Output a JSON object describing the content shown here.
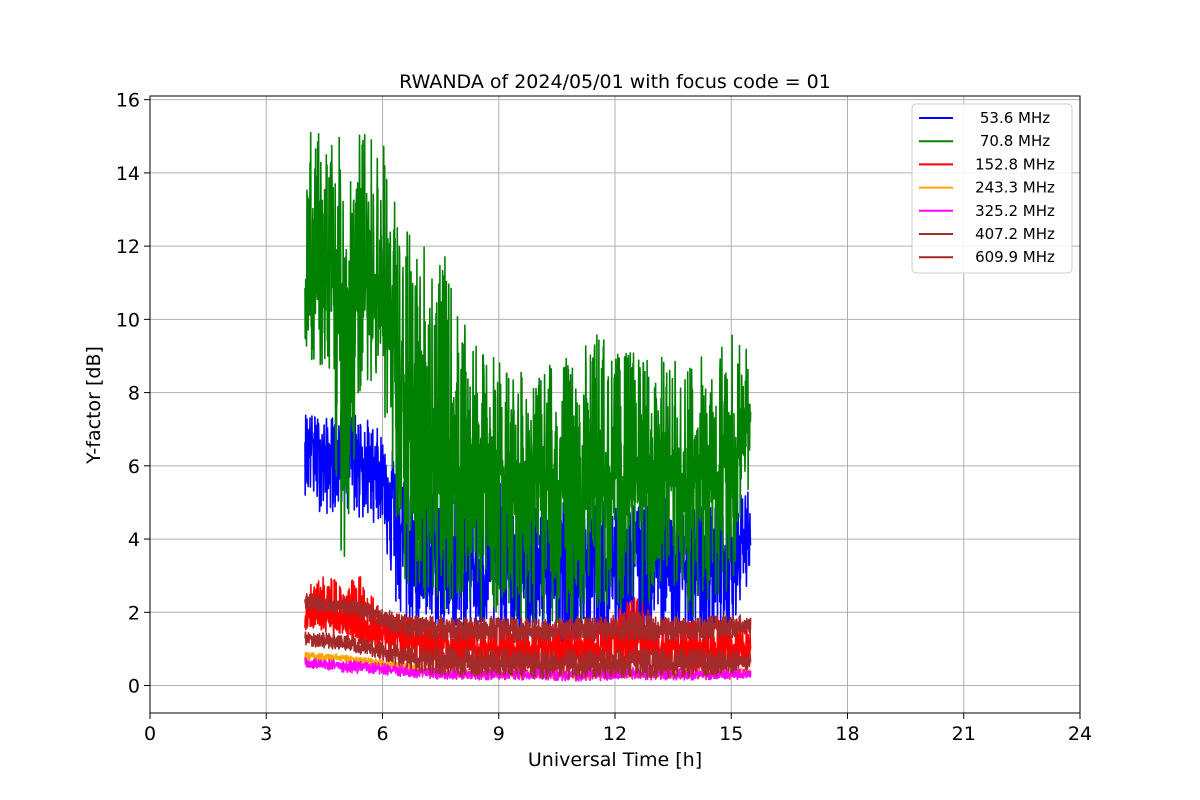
{
  "chart_data": {
    "type": "line",
    "title": "RWANDA of 2024/05/01 with focus code = 01",
    "xlabel": "Universal Time [h]",
    "ylabel": "Y-factor [dB]",
    "xlim": [
      0,
      24
    ],
    "ylim": [
      -0.75,
      16.1
    ],
    "xticks": [
      0,
      3,
      6,
      9,
      12,
      15,
      18,
      21,
      24
    ],
    "yticks": [
      0,
      2,
      4,
      6,
      8,
      10,
      12,
      14,
      16
    ],
    "grid": true,
    "legend_position": "top-right",
    "x_range_of_data": [
      4.0,
      15.5
    ],
    "series": [
      {
        "name": "53.6 MHz",
        "color": "#0000ff",
        "x": [
          4.0,
          4.5,
          5.0,
          5.5,
          6.0,
          6.25,
          6.5,
          7.0,
          7.5,
          8.0,
          8.5,
          9.0,
          9.5,
          10.0,
          10.5,
          11.0,
          11.5,
          12.0,
          12.5,
          13.0,
          13.5,
          14.0,
          14.5,
          15.0,
          15.5
        ],
        "values": [
          6.9,
          6.2,
          6.4,
          6.2,
          5.9,
          5.4,
          4.2,
          3.3,
          3.2,
          3.5,
          3.2,
          3.4,
          3.2,
          3.0,
          3.0,
          3.2,
          3.4,
          3.2,
          3.4,
          3.5,
          3.3,
          3.2,
          3.4,
          3.6,
          4.3
        ],
        "min_envelope": [
          5.2,
          4.6,
          4.9,
          4.4,
          4.5,
          2.4,
          1.4,
          1.6,
          1.4,
          1.4,
          1.2,
          1.2,
          1.2,
          1.2,
          1.2,
          1.0,
          1.2,
          1.2,
          1.2,
          1.4,
          1.2,
          1.2,
          1.2,
          1.6,
          3.0
        ],
        "max_envelope": [
          7.5,
          7.3,
          7.5,
          7.4,
          6.9,
          6.8,
          6.2,
          5.8,
          5.8,
          6.1,
          5.8,
          5.6,
          6.0,
          5.2,
          5.2,
          5.2,
          5.0,
          5.3,
          5.0,
          5.3,
          5.0,
          4.9,
          5.0,
          5.3,
          5.4
        ]
      },
      {
        "name": "70.8 MHz",
        "color": "#008000",
        "x": [
          4.0,
          4.5,
          5.0,
          5.5,
          6.0,
          6.25,
          6.5,
          7.0,
          7.5,
          8.0,
          8.5,
          9.0,
          9.5,
          10.0,
          10.5,
          11.0,
          11.5,
          12.0,
          12.5,
          13.0,
          13.5,
          14.0,
          14.5,
          15.0,
          15.5
        ],
        "values": [
          10.5,
          10.8,
          10.2,
          11.2,
          11.0,
          9.5,
          7.0,
          6.2,
          6.0,
          6.0,
          6.0,
          5.8,
          5.8,
          5.6,
          5.2,
          5.4,
          5.6,
          5.5,
          5.6,
          5.8,
          5.4,
          5.6,
          5.8,
          6.0,
          7.2
        ],
        "min_envelope": [
          9.0,
          8.5,
          2.8,
          8.4,
          8.2,
          4.5,
          2.4,
          2.4,
          2.0,
          2.2,
          1.8,
          2.0,
          1.8,
          1.6,
          1.7,
          1.6,
          2.0,
          2.0,
          2.2,
          2.0,
          2.0,
          1.8,
          2.2,
          2.6,
          5.6
        ],
        "max_envelope": [
          15.2,
          15.3,
          14.9,
          15.3,
          15.0,
          14.0,
          12.5,
          12.6,
          12.2,
          10.1,
          9.1,
          9.1,
          8.6,
          8.3,
          9.4,
          8.7,
          10.0,
          9.1,
          9.2,
          9.1,
          8.9,
          9.0,
          9.2,
          9.8,
          9.1
        ]
      },
      {
        "name": "152.8 MHz",
        "color": "#ff0000",
        "x": [
          4.0,
          4.5,
          5.0,
          5.5,
          6.0,
          6.5,
          7.0,
          7.5,
          8.0,
          8.5,
          9.0,
          9.5,
          10.0,
          10.5,
          11.0,
          11.5,
          12.0,
          12.5,
          13.0,
          13.5,
          14.0,
          14.5,
          15.0,
          15.5
        ],
        "values": [
          2.0,
          1.9,
          1.8,
          1.6,
          1.4,
          1.3,
          1.2,
          1.1,
          1.0,
          1.0,
          1.0,
          1.0,
          1.0,
          1.0,
          1.0,
          1.0,
          1.0,
          1.1,
          1.0,
          1.0,
          1.0,
          1.0,
          1.0,
          1.0
        ],
        "min_envelope": [
          1.5,
          1.4,
          1.3,
          1.1,
          0.9,
          0.7,
          0.5,
          0.3,
          0.3,
          0.3,
          0.3,
          0.3,
          0.3,
          0.3,
          0.3,
          0.3,
          0.3,
          0.4,
          0.3,
          0.3,
          0.3,
          0.3,
          0.3,
          0.6
        ],
        "max_envelope": [
          2.6,
          3.1,
          2.8,
          3.1,
          2.1,
          1.9,
          1.8,
          1.8,
          1.8,
          1.7,
          1.8,
          1.7,
          1.6,
          1.7,
          1.8,
          1.9,
          2.0,
          2.5,
          1.9,
          1.8,
          1.8,
          1.8,
          1.9,
          1.7
        ]
      },
      {
        "name": "243.3 MHz",
        "color": "#ffa500",
        "x": [
          4.0,
          5.0,
          6.0,
          7.0,
          8.0,
          9.0,
          10.0,
          11.0,
          12.0,
          13.0,
          14.0,
          15.0,
          15.5
        ],
        "values": [
          0.8,
          0.75,
          0.6,
          0.45,
          0.35,
          0.3,
          0.3,
          0.28,
          0.3,
          0.3,
          0.3,
          0.3,
          0.35
        ],
        "min_envelope": [
          0.7,
          0.65,
          0.5,
          0.35,
          0.2,
          0.2,
          0.2,
          0.15,
          0.2,
          0.2,
          0.2,
          0.2,
          0.25
        ],
        "max_envelope": [
          0.9,
          0.85,
          0.7,
          0.55,
          0.45,
          0.45,
          0.4,
          0.4,
          0.45,
          0.45,
          0.45,
          0.45,
          0.5
        ]
      },
      {
        "name": "325.2 MHz",
        "color": "#ff00ff",
        "x": [
          4.0,
          5.0,
          6.0,
          7.0,
          8.0,
          9.0,
          10.0,
          11.0,
          12.0,
          13.0,
          14.0,
          15.0,
          15.5
        ],
        "values": [
          0.6,
          0.55,
          0.45,
          0.35,
          0.3,
          0.3,
          0.3,
          0.28,
          0.3,
          0.32,
          0.3,
          0.3,
          0.3
        ],
        "min_envelope": [
          0.5,
          0.35,
          0.3,
          0.2,
          0.15,
          0.15,
          0.15,
          0.12,
          0.15,
          0.15,
          0.15,
          0.15,
          0.2
        ],
        "max_envelope": [
          0.75,
          0.7,
          0.6,
          0.5,
          0.45,
          0.45,
          0.45,
          0.42,
          0.5,
          0.5,
          0.45,
          0.45,
          0.45
        ]
      },
      {
        "name": "407.2 MHz",
        "color": "#a52a2a",
        "x": [
          4.0,
          4.5,
          5.0,
          5.5,
          6.0,
          6.5,
          7.0,
          7.5,
          8.0,
          8.5,
          9.0,
          9.5,
          10.0,
          10.5,
          11.0,
          11.5,
          12.0,
          12.5,
          13.0,
          13.5,
          14.0,
          14.5,
          15.0,
          15.5
        ],
        "values": [
          2.3,
          2.2,
          2.15,
          2.05,
          1.85,
          1.65,
          1.6,
          1.6,
          1.55,
          1.55,
          1.6,
          1.5,
          1.5,
          1.5,
          1.55,
          1.5,
          1.5,
          1.6,
          1.5,
          1.55,
          1.5,
          1.55,
          1.55,
          1.6
        ],
        "min_envelope": [
          2.1,
          2.0,
          1.95,
          1.8,
          1.6,
          1.3,
          1.2,
          1.2,
          1.2,
          1.2,
          1.2,
          1.15,
          1.15,
          1.2,
          1.2,
          1.15,
          1.2,
          1.2,
          1.2,
          1.2,
          1.2,
          1.25,
          1.3,
          1.4
        ],
        "max_envelope": [
          2.5,
          2.45,
          2.4,
          2.3,
          2.1,
          1.95,
          1.9,
          1.9,
          1.85,
          1.9,
          1.9,
          1.85,
          1.85,
          1.85,
          1.9,
          1.85,
          1.9,
          2.1,
          1.9,
          1.9,
          1.85,
          1.9,
          1.95,
          1.9
        ]
      },
      {
        "name": "609.9 MHz",
        "color": "#a52a2a",
        "x": [
          4.0,
          4.5,
          5.0,
          5.5,
          6.0,
          6.5,
          7.0,
          7.5,
          8.0,
          8.5,
          9.0,
          9.5,
          10.0,
          10.5,
          11.0,
          11.5,
          12.0,
          12.5,
          13.0,
          13.5,
          14.0,
          14.5,
          15.0,
          15.5
        ],
        "values": [
          1.3,
          1.2,
          1.15,
          1.05,
          0.95,
          0.8,
          0.7,
          0.65,
          0.65,
          0.65,
          0.65,
          0.6,
          0.6,
          0.6,
          0.6,
          0.6,
          0.6,
          0.65,
          0.6,
          0.6,
          0.6,
          0.6,
          0.6,
          0.65
        ],
        "min_envelope": [
          1.1,
          1.0,
          0.95,
          0.85,
          0.7,
          0.5,
          0.35,
          0.25,
          0.25,
          0.25,
          0.25,
          0.2,
          0.2,
          0.2,
          0.2,
          0.2,
          0.2,
          0.25,
          0.2,
          0.2,
          0.2,
          0.25,
          0.3,
          0.45
        ],
        "max_envelope": [
          1.5,
          1.45,
          1.4,
          1.3,
          1.2,
          1.15,
          1.1,
          1.05,
          1.05,
          1.05,
          1.05,
          1.0,
          1.0,
          1.0,
          1.0,
          1.0,
          1.0,
          1.1,
          1.0,
          1.0,
          1.0,
          1.0,
          1.0,
          0.95
        ]
      }
    ]
  }
}
